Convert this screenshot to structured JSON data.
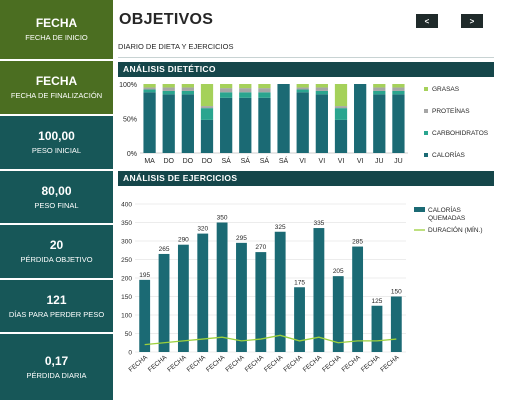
{
  "sidebar": {
    "start": {
      "value": "FECHA",
      "label": "FECHA DE INICIO"
    },
    "end": {
      "value": "FECHA",
      "label": "FECHA DE FINALIZACIÓN"
    },
    "stats": [
      {
        "value": "100,00",
        "label": "PESO INICIAL"
      },
      {
        "value": "80,00",
        "label": "PESO FINAL"
      },
      {
        "value": "20",
        "label": "PÉRDIDA OBJETIVO"
      },
      {
        "value": "121",
        "label": "DÍAS PARA PERDER PESO"
      },
      {
        "value": "0,17",
        "label": "PÉRDIDA DIARIA"
      }
    ]
  },
  "header": {
    "title": "OBJETIVOS",
    "prev_label": "<",
    "next_label": ">",
    "subtitle": "DIARIO DE DIETA Y EJERCICIOS"
  },
  "diet_section": {
    "title": "ANÁLISIS DIETÉTICO"
  },
  "exercise_section": {
    "title": "ANÁLISIS DE EJERCICIOS"
  },
  "colors": {
    "green_dark": "#4b6e21",
    "teal_dark": "#175758",
    "band": "#15464a",
    "calorias": "#1b6a74",
    "carbohidratos": "#2aa58f",
    "proteinas": "#a6a6a6",
    "grasas": "#a5d15a",
    "duracion": "#9ccf3c"
  },
  "chart_data": [
    {
      "type": "bar",
      "stacked": "percent",
      "title": "",
      "categories": [
        "MA",
        "DO",
        "DO",
        "DO",
        "SÁ",
        "SÁ",
        "SÁ",
        "SÁ",
        "VI",
        "VI",
        "VI",
        "VI",
        "JU",
        "JU"
      ],
      "yticks": [
        "0%",
        "50%",
        "100%"
      ],
      "ylim": [
        0,
        100
      ],
      "legend": "right",
      "series": [
        {
          "name": "CALORÍAS",
          "values": [
            88,
            85,
            85,
            48,
            80,
            80,
            80,
            100,
            88,
            85,
            48,
            100,
            85,
            85
          ]
        },
        {
          "name": "CARBOHIDRATOS",
          "values": [
            4,
            5,
            5,
            17,
            8,
            8,
            8,
            0,
            4,
            5,
            17,
            0,
            5,
            5
          ]
        },
        {
          "name": "PROTEÍNAS",
          "values": [
            3,
            5,
            5,
            3,
            6,
            6,
            6,
            0,
            3,
            5,
            3,
            0,
            5,
            5
          ]
        },
        {
          "name": "GRASAS",
          "values": [
            5,
            5,
            5,
            32,
            6,
            6,
            6,
            0,
            5,
            5,
            32,
            0,
            5,
            5
          ]
        }
      ]
    },
    {
      "type": "bar",
      "title": "",
      "categories": [
        "FECHA",
        "FECHA",
        "FECHA",
        "FECHA",
        "FECHA",
        "FECHA",
        "FECHA",
        "FECHA",
        "FECHA",
        "FECHA",
        "FECHA",
        "FECHA",
        "FECHA",
        "FECHA"
      ],
      "yticks": [
        0,
        50,
        100,
        150,
        200,
        250,
        300,
        350,
        400
      ],
      "ylim": [
        0,
        400
      ],
      "grid": true,
      "legend": "right",
      "series": [
        {
          "name": "CALORÍAS QUEMADAS",
          "type": "bar",
          "values": [
            195,
            265,
            290,
            320,
            350,
            295,
            270,
            325,
            175,
            335,
            205,
            285,
            125,
            150
          ]
        },
        {
          "name": "DURACIÓN (MÍN.)",
          "type": "line",
          "values": [
            20,
            25,
            30,
            35,
            40,
            30,
            35,
            45,
            30,
            40,
            25,
            30,
            30,
            35
          ]
        }
      ]
    }
  ]
}
